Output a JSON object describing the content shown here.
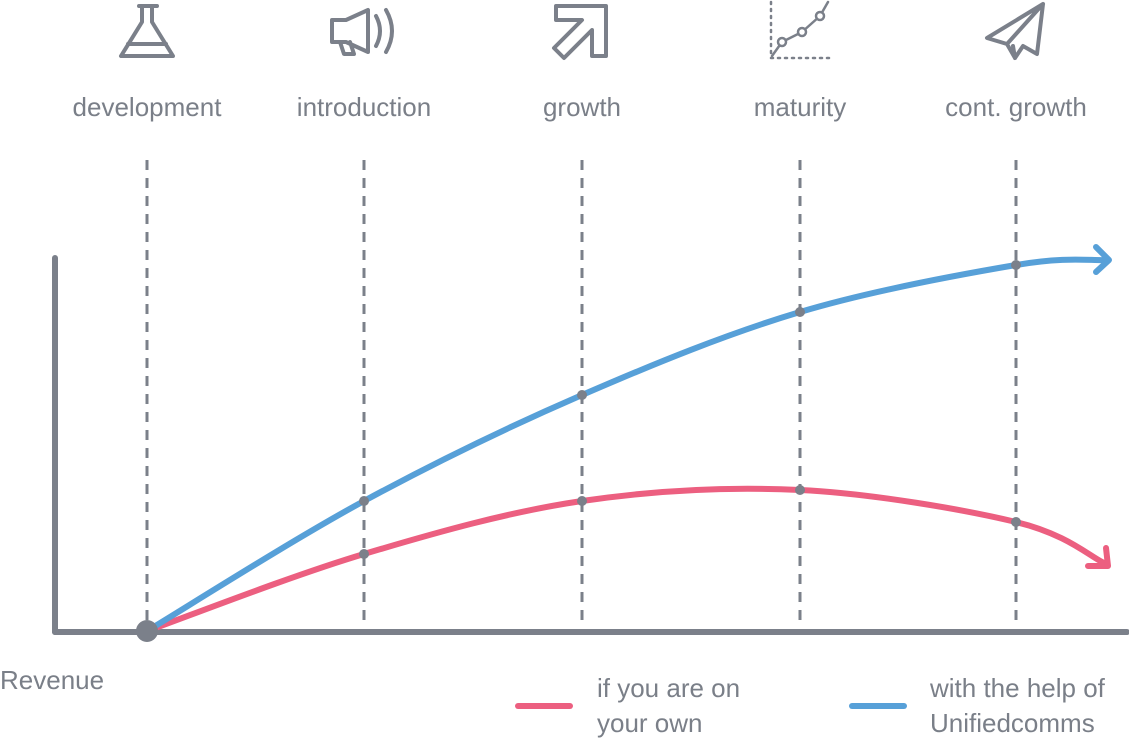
{
  "stages": [
    {
      "label": "development"
    },
    {
      "label": "introduction"
    },
    {
      "label": "growth"
    },
    {
      "label": "maturity"
    },
    {
      "label": "cont. growth"
    }
  ],
  "axis_label": "Revenue",
  "legend": [
    {
      "label": "if you are on your own"
    },
    {
      "label": "with the help of Unifiedcomms"
    }
  ]
}
